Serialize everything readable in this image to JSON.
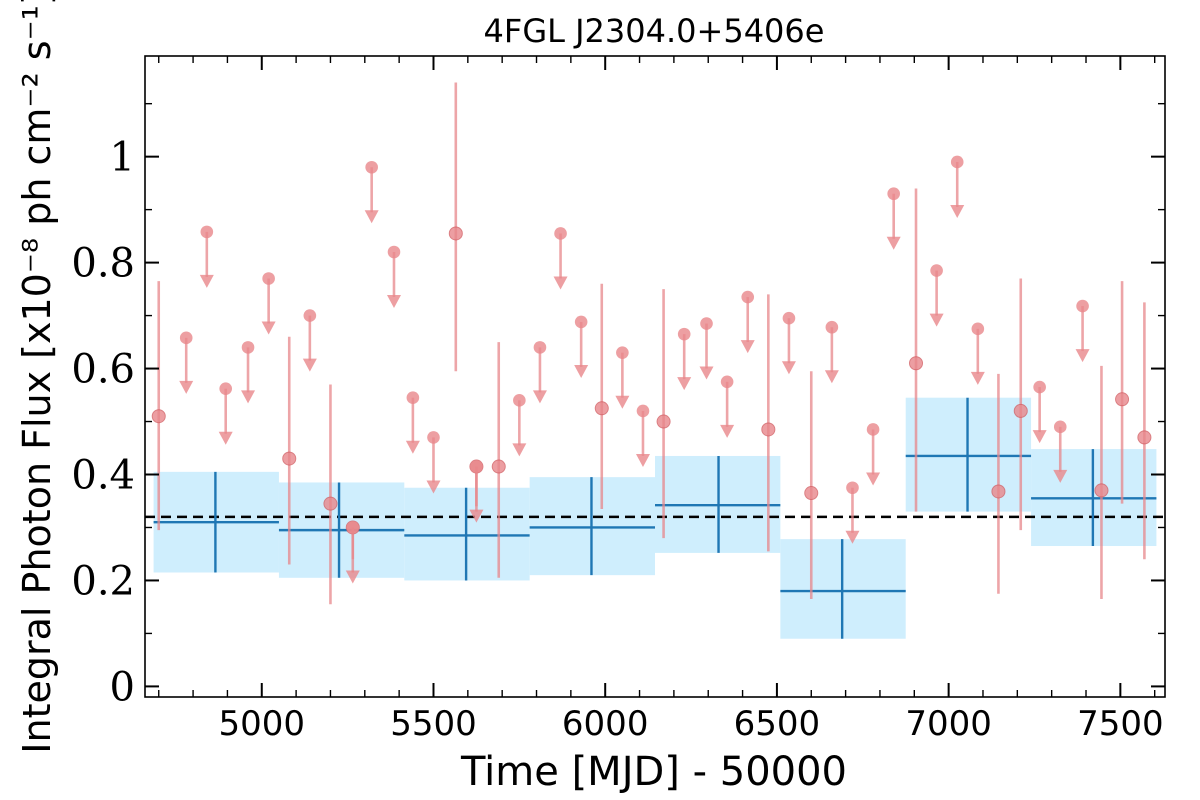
{
  "chart_data": {
    "type": "scatter",
    "title": "4FGL J2304.0+5406e",
    "xlabel": "Time [MJD] - 50000",
    "ylabel": "Integral Photon Flux [x10⁻⁸ ph cm⁻² s⁻¹]",
    "xlim": [
      4660,
      7630
    ],
    "ylim": [
      -0.02,
      1.19
    ],
    "x_ticks": [
      5000,
      5500,
      6000,
      6500,
      7000,
      7500
    ],
    "y_ticks": [
      0,
      0.2,
      0.4,
      0.6,
      0.8,
      1
    ],
    "x_tick_labels": [
      "5000",
      "5500",
      "6000",
      "6500",
      "7000",
      "7500"
    ],
    "y_tick_labels": [
      "0",
      "0.2",
      "0.4",
      "0.6",
      "0.8",
      "1"
    ],
    "grid": false,
    "colors": {
      "points": "#e8878b",
      "binned": "#1f77b4",
      "band": "#cfeefd",
      "mean_line": "#000000"
    },
    "mean_flux": 0.32,
    "fine_bins": {
      "measurements": [
        {
          "x": 4700,
          "y": 0.51,
          "ylo": 0.295,
          "yhi": 0.765
        },
        {
          "x": 5080,
          "y": 0.43,
          "ylo": 0.23,
          "yhi": 0.66
        },
        {
          "x": 5200,
          "y": 0.345,
          "ylo": 0.155,
          "yhi": 0.57
        },
        {
          "x": 5265,
          "y": 0.3,
          "ylo": 0.24,
          "yhi": 0.3
        },
        {
          "x": 5565,
          "y": 0.855,
          "ylo": 0.595,
          "yhi": 1.14
        },
        {
          "x": 5625,
          "y": 0.415,
          "ylo": 0.34,
          "yhi": 0.415
        },
        {
          "x": 5690,
          "y": 0.415,
          "ylo": 0.205,
          "yhi": 0.65
        },
        {
          "x": 5990,
          "y": 0.525,
          "ylo": 0.335,
          "yhi": 0.76
        },
        {
          "x": 6170,
          "y": 0.5,
          "ylo": 0.28,
          "yhi": 0.75
        },
        {
          "x": 6475,
          "y": 0.485,
          "ylo": 0.255,
          "yhi": 0.74
        },
        {
          "x": 6600,
          "y": 0.365,
          "ylo": 0.165,
          "yhi": 0.595
        },
        {
          "x": 6905,
          "y": 0.61,
          "ylo": 0.33,
          "yhi": 0.94
        },
        {
          "x": 7145,
          "y": 0.368,
          "ylo": 0.175,
          "yhi": 0.59
        },
        {
          "x": 7210,
          "y": 0.52,
          "ylo": 0.295,
          "yhi": 0.77
        },
        {
          "x": 7445,
          "y": 0.37,
          "ylo": 0.165,
          "yhi": 0.605
        },
        {
          "x": 7505,
          "y": 0.542,
          "ylo": 0.345,
          "yhi": 0.765
        },
        {
          "x": 7570,
          "y": 0.47,
          "ylo": 0.24,
          "yhi": 0.725
        }
      ],
      "upper_limits": [
        {
          "x": 4780,
          "y": 0.658
        },
        {
          "x": 4840,
          "y": 0.858
        },
        {
          "x": 4895,
          "y": 0.562
        },
        {
          "x": 4960,
          "y": 0.64
        },
        {
          "x": 5020,
          "y": 0.77
        },
        {
          "x": 5140,
          "y": 0.7
        },
        {
          "x": 5265,
          "y": 0.3
        },
        {
          "x": 5320,
          "y": 0.98
        },
        {
          "x": 5385,
          "y": 0.82
        },
        {
          "x": 5440,
          "y": 0.545
        },
        {
          "x": 5500,
          "y": 0.47
        },
        {
          "x": 5625,
          "y": 0.415
        },
        {
          "x": 5750,
          "y": 0.54
        },
        {
          "x": 5810,
          "y": 0.64
        },
        {
          "x": 5870,
          "y": 0.855
        },
        {
          "x": 5930,
          "y": 0.688
        },
        {
          "x": 6050,
          "y": 0.63
        },
        {
          "x": 6110,
          "y": 0.52
        },
        {
          "x": 6230,
          "y": 0.665
        },
        {
          "x": 6295,
          "y": 0.685
        },
        {
          "x": 6355,
          "y": 0.575
        },
        {
          "x": 6415,
          "y": 0.735
        },
        {
          "x": 6535,
          "y": 0.695
        },
        {
          "x": 6660,
          "y": 0.678
        },
        {
          "x": 6720,
          "y": 0.375
        },
        {
          "x": 6780,
          "y": 0.485
        },
        {
          "x": 6840,
          "y": 0.93
        },
        {
          "x": 6965,
          "y": 0.785
        },
        {
          "x": 7025,
          "y": 0.99
        },
        {
          "x": 7085,
          "y": 0.675
        },
        {
          "x": 7265,
          "y": 0.565
        },
        {
          "x": 7325,
          "y": 0.49
        },
        {
          "x": 7390,
          "y": 0.718
        }
      ]
    },
    "coarse_bins": [
      {
        "x0": 4685,
        "x1": 5050,
        "y": 0.31,
        "ylo": 0.215,
        "yhi": 0.405,
        "xc": 4865
      },
      {
        "x0": 5050,
        "x1": 5415,
        "y": 0.295,
        "ylo": 0.205,
        "yhi": 0.385,
        "xc": 5225
      },
      {
        "x0": 5415,
        "x1": 5780,
        "y": 0.285,
        "ylo": 0.2,
        "yhi": 0.375,
        "xc": 5595
      },
      {
        "x0": 5780,
        "x1": 6145,
        "y": 0.3,
        "ylo": 0.21,
        "yhi": 0.395,
        "xc": 5960
      },
      {
        "x0": 6145,
        "x1": 6510,
        "y": 0.342,
        "ylo": 0.252,
        "yhi": 0.435,
        "xc": 6330
      },
      {
        "x0": 6510,
        "x1": 6875,
        "y": 0.18,
        "ylo": 0.09,
        "yhi": 0.278,
        "xc": 6690
      },
      {
        "x0": 6875,
        "x1": 7240,
        "y": 0.435,
        "ylo": 0.33,
        "yhi": 0.545,
        "xc": 7055
      },
      {
        "x0": 7240,
        "x1": 7605,
        "y": 0.355,
        "ylo": 0.265,
        "yhi": 0.448,
        "xc": 7420
      }
    ]
  }
}
